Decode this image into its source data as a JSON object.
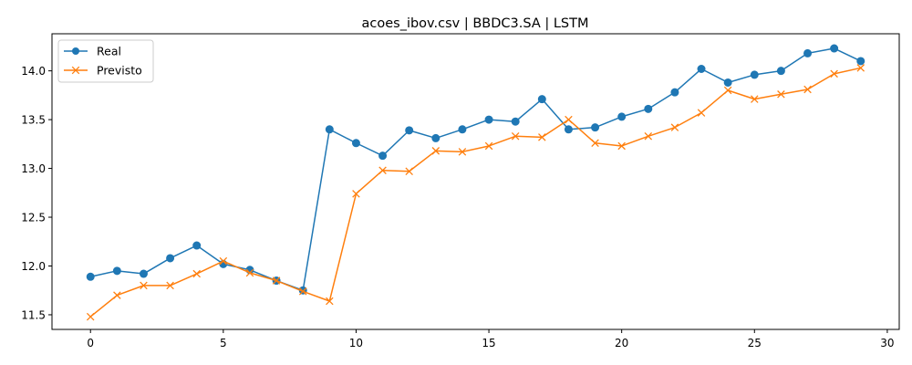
{
  "chart_data": {
    "type": "line",
    "title": "acoes_ibov.csv | BBDC3.SA | LSTM",
    "xlabel": "",
    "ylabel": "",
    "xlim": [
      -1.45,
      30.45
    ],
    "ylim": [
      11.35,
      14.38
    ],
    "xticks": [
      0,
      5,
      10,
      15,
      20,
      25,
      30
    ],
    "yticks": [
      11.5,
      12.0,
      12.5,
      13.0,
      13.5,
      14.0
    ],
    "xtick_labels": [
      "0",
      "5",
      "10",
      "15",
      "20",
      "25",
      "30"
    ],
    "ytick_labels": [
      "11.5",
      "12.0",
      "12.5",
      "13.0",
      "13.5",
      "14.0"
    ],
    "grid": false,
    "legend_position": "upper left",
    "x": [
      0,
      1,
      2,
      3,
      4,
      5,
      6,
      7,
      8,
      9,
      10,
      11,
      12,
      13,
      14,
      15,
      16,
      17,
      18,
      19,
      20,
      21,
      22,
      23,
      24,
      25,
      26,
      27,
      28,
      29
    ],
    "series": [
      {
        "name": "Real",
        "color": "#1f77b4",
        "marker": "circle",
        "values": [
          11.89,
          11.95,
          11.92,
          12.08,
          12.21,
          12.02,
          11.96,
          11.85,
          11.75,
          13.4,
          13.26,
          13.13,
          13.39,
          13.31,
          13.4,
          13.5,
          13.48,
          13.71,
          13.4,
          13.42,
          13.53,
          13.61,
          13.78,
          14.02,
          13.88,
          13.96,
          14.0,
          14.18,
          14.23,
          14.1
        ]
      },
      {
        "name": "Previsto",
        "color": "#ff7f0e",
        "marker": "x",
        "values": [
          11.48,
          11.7,
          11.8,
          11.8,
          11.92,
          12.05,
          11.93,
          11.85,
          11.74,
          11.64,
          12.74,
          12.98,
          12.97,
          13.18,
          13.17,
          13.23,
          13.33,
          13.32,
          13.5,
          13.26,
          13.23,
          13.33,
          13.42,
          13.57,
          13.8,
          13.71,
          13.76,
          13.81,
          13.97,
          14.03
        ]
      }
    ]
  }
}
